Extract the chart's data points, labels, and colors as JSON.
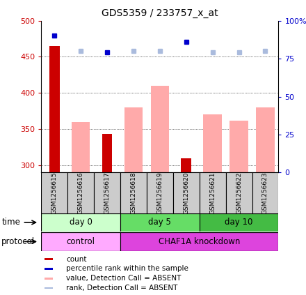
{
  "title": "GDS5359 / 233757_x_at",
  "samples": [
    "GSM1256615",
    "GSM1256616",
    "GSM1256617",
    "GSM1256618",
    "GSM1256619",
    "GSM1256620",
    "GSM1256621",
    "GSM1256622",
    "GSM1256623"
  ],
  "count_values": [
    465,
    null,
    343,
    null,
    null,
    310,
    null,
    null,
    null
  ],
  "value_absent": [
    null,
    360,
    null,
    380,
    410,
    null,
    370,
    362,
    380
  ],
  "percentile_rank": [
    90,
    null,
    79,
    null,
    null,
    86,
    null,
    null,
    null
  ],
  "rank_absent": [
    null,
    80,
    null,
    80,
    80,
    null,
    79,
    79,
    80
  ],
  "ylim_left": [
    290,
    500
  ],
  "ylim_right": [
    0,
    100
  ],
  "yticks_left": [
    300,
    350,
    400,
    450,
    500
  ],
  "yticks_right": [
    0,
    25,
    50,
    75,
    100
  ],
  "time_groups": [
    {
      "label": "day 0",
      "start": 0,
      "end": 3,
      "color": "#ccffcc"
    },
    {
      "label": "day 5",
      "start": 3,
      "end": 6,
      "color": "#66dd66"
    },
    {
      "label": "day 10",
      "start": 6,
      "end": 9,
      "color": "#44bb44"
    }
  ],
  "protocol_groups": [
    {
      "label": "control",
      "start": 0,
      "end": 3,
      "color": "#ffaaff"
    },
    {
      "label": "CHAF1A knockdown",
      "start": 3,
      "end": 9,
      "color": "#dd44dd"
    }
  ],
  "bar_color_count": "#cc0000",
  "bar_color_absent": "#ffaaaa",
  "dot_color_percentile": "#0000cc",
  "dot_color_rank_absent": "#aabbdd",
  "grid_color": "black",
  "bar_width": 0.7,
  "legend_items": [
    {
      "label": "count",
      "color": "#cc0000"
    },
    {
      "label": "percentile rank within the sample",
      "color": "#0000cc"
    },
    {
      "label": "value, Detection Call = ABSENT",
      "color": "#ffaaaa"
    },
    {
      "label": "rank, Detection Call = ABSENT",
      "color": "#aabbdd"
    }
  ]
}
